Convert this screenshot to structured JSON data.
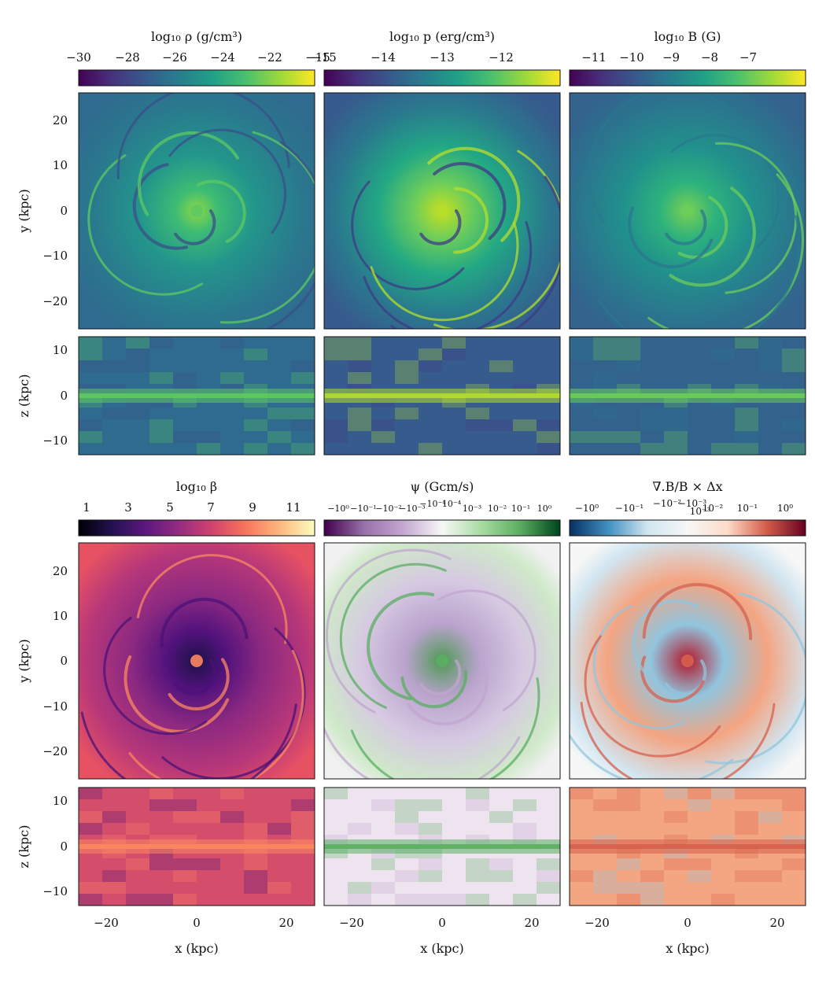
{
  "colors": {
    "viridis": [
      "#440154",
      "#46327e",
      "#365c8d",
      "#277f8e",
      "#1fa187",
      "#4ac16d",
      "#a0da39",
      "#fde725"
    ],
    "magma": [
      "#000004",
      "#221150",
      "#5f187f",
      "#982d80",
      "#d3436e",
      "#f8765c",
      "#febb81",
      "#fcfdbf"
    ],
    "prgn": [
      "#40004b",
      "#9970ab",
      "#c2a5cf",
      "#f7f7f7",
      "#a6dba0",
      "#5aae61",
      "#00441b"
    ],
    "rdbu_r": [
      "#053061",
      "#4393c3",
      "#d1e5f0",
      "#f7f7f7",
      "#fddbc7",
      "#d6604d",
      "#67001f"
    ]
  },
  "chart_data": [
    {
      "type": "heatmap",
      "panel": "density",
      "colorbar_label": "log10 ρ (g/cm³)",
      "colorbar_ticks": [
        "−30",
        "−28",
        "−26",
        "−24",
        "−22",
        "−15"
      ],
      "colormap": "viridis",
      "face_on": {
        "xlim": [
          -26,
          26
        ],
        "ylim": [
          -26,
          26
        ],
        "ylabel": "y (kpc)",
        "yticks": [
          "20",
          "10",
          "0",
          "−10",
          "−20"
        ]
      },
      "edge_on": {
        "xlim": [
          -26,
          26
        ],
        "zlim": [
          -13,
          13
        ],
        "ylabel": "z (kpc)",
        "zticks": [
          "10",
          "0",
          "−10"
        ]
      }
    },
    {
      "type": "heatmap",
      "panel": "pressure",
      "colorbar_label": "log10 p (erg/cm³)",
      "colorbar_ticks": [
        "−15",
        "−14",
        "−13",
        "−12"
      ],
      "colormap": "viridis",
      "face_on": {
        "xlim": [
          -26,
          26
        ],
        "ylim": [
          -26,
          26
        ]
      },
      "edge_on": {
        "xlim": [
          -26,
          26
        ],
        "zlim": [
          -13,
          13
        ]
      }
    },
    {
      "type": "heatmap",
      "panel": "magnetic_field",
      "colorbar_label": "log10 B (G)",
      "colorbar_ticks": [
        "−11",
        "−10",
        "−9",
        "−8",
        "−7"
      ],
      "colormap": "viridis",
      "face_on": {
        "xlim": [
          -26,
          26
        ],
        "ylim": [
          -26,
          26
        ]
      },
      "edge_on": {
        "xlim": [
          -26,
          26
        ],
        "zlim": [
          -13,
          13
        ]
      }
    },
    {
      "type": "heatmap",
      "panel": "plasma_beta",
      "colorbar_label": "log10 β",
      "colorbar_ticks": [
        "1",
        "3",
        "5",
        "7",
        "9",
        "11"
      ],
      "colormap": "magma",
      "face_on": {
        "xlim": [
          -26,
          26
        ],
        "ylim": [
          -26,
          26
        ],
        "ylabel": "y (kpc)",
        "yticks": [
          "20",
          "10",
          "0",
          "−10",
          "−20"
        ]
      },
      "edge_on": {
        "xlim": [
          -26,
          26
        ],
        "zlim": [
          -13,
          13
        ],
        "ylabel": "z (kpc)",
        "zticks": [
          "10",
          "0",
          "−10"
        ],
        "xlabel": "x (kpc)",
        "xticks": [
          "−20",
          "0",
          "20"
        ]
      }
    },
    {
      "type": "heatmap",
      "panel": "psi",
      "colorbar_label": "ψ (Gcm/s)",
      "colorbar_ticks": [
        "−10⁰",
        "−10⁻¹",
        "−10⁻²",
        "−10⁻³",
        "−10⁻⁴",
        "10⁻⁴",
        "10⁻³",
        "10⁻²",
        "10⁻¹",
        "10⁰"
      ],
      "colormap": "PRGn",
      "face_on": {
        "xlim": [
          -26,
          26
        ],
        "ylim": [
          -26,
          26
        ]
      },
      "edge_on": {
        "xlim": [
          -26,
          26
        ],
        "zlim": [
          -13,
          13
        ],
        "xlabel": "x (kpc)",
        "xticks": [
          "−20",
          "0",
          "20"
        ]
      }
    },
    {
      "type": "heatmap",
      "panel": "divergence",
      "colorbar_label": "∇.B/B × Δx",
      "colorbar_ticks": [
        "−10⁰",
        "−10⁻¹",
        "−10⁻²",
        "−10⁻³",
        "10⁻³",
        "10⁻²",
        "10⁻¹",
        "10⁰"
      ],
      "colormap": "RdBu_r",
      "face_on": {
        "xlim": [
          -26,
          26
        ],
        "ylim": [
          -26,
          26
        ]
      },
      "edge_on": {
        "xlim": [
          -26,
          26
        ],
        "zlim": [
          -13,
          13
        ],
        "xlabel": "x (kpc)",
        "xticks": [
          "−20",
          "0",
          "20"
        ]
      }
    }
  ],
  "labels": {
    "y_axis": "y (kpc)",
    "z_axis": "z (kpc)",
    "x_axis": "x (kpc)",
    "density_cb": "log₁₀ ρ (g/cm³)",
    "pressure_cb": "log₁₀ p (erg/cm³)",
    "bfield_cb": "log₁₀ B (G)",
    "beta_cb": "log₁₀ β",
    "psi_cb": "ψ (Gcm/s)",
    "div_cb": "∇.B/B × Δx"
  }
}
